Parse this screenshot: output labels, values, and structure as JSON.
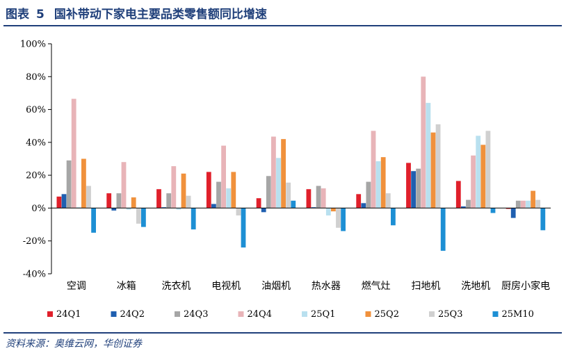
{
  "header": {
    "label": "图表",
    "number": "5",
    "title": "国补带动下家电主要品类零售额同比增速"
  },
  "source": "资料来源：奥维云网，华创证券",
  "chart_data": {
    "type": "bar",
    "categories": [
      "空调",
      "冰箱",
      "洗衣机",
      "电视机",
      "油烟机",
      "热水器",
      "燃气灶",
      "扫地机",
      "洗地机",
      "厨房小家电"
    ],
    "ylim": [
      -40,
      100
    ],
    "yticks": [
      -40,
      -20,
      0,
      20,
      40,
      60,
      80,
      100
    ],
    "ytick_labels": [
      "-40%",
      "-20%",
      "0%",
      "20%",
      "40%",
      "60%",
      "80%",
      "100%"
    ],
    "legend_position": "bottom",
    "grid": false,
    "series": [
      {
        "name": "24Q1",
        "color": "#e0202b",
        "values": [
          7,
          9,
          11.5,
          22,
          6,
          11.5,
          8.5,
          27.5,
          16.5,
          -0.5
        ]
      },
      {
        "name": "24Q2",
        "color": "#1f5fb0",
        "values": [
          8.5,
          -1.5,
          0.5,
          2.5,
          -2.5,
          0.5,
          3,
          22.5,
          1,
          -6
        ]
      },
      {
        "name": "24Q3",
        "color": "#a6a6a6",
        "values": [
          29,
          9,
          9,
          16,
          19.5,
          13.5,
          16,
          24,
          5,
          4.5
        ]
      },
      {
        "name": "24Q4",
        "color": "#e8b4b8",
        "values": [
          66.5,
          28,
          25.5,
          38,
          43.5,
          12,
          47,
          80,
          32,
          4.5
        ]
      },
      {
        "name": "25Q1",
        "color": "#b9e0ef",
        "values": [
          0.5,
          -1,
          -1,
          12,
          30.5,
          -4.5,
          28.5,
          64,
          44,
          4.5
        ]
      },
      {
        "name": "25Q2",
        "color": "#f0913c",
        "values": [
          30,
          6.5,
          21,
          22,
          42,
          -2,
          31,
          46,
          38.5,
          10.5
        ]
      },
      {
        "name": "25Q3",
        "color": "#d0d0d0",
        "values": [
          13.5,
          -9.5,
          7.5,
          -4.5,
          15.5,
          -12,
          9,
          51,
          47,
          5
        ]
      },
      {
        "name": "25M10",
        "color": "#1d8fd4",
        "values": [
          -15,
          -11.5,
          -13,
          -24,
          4.5,
          -14,
          -10.5,
          -26,
          -3,
          -13.5
        ]
      }
    ]
  }
}
